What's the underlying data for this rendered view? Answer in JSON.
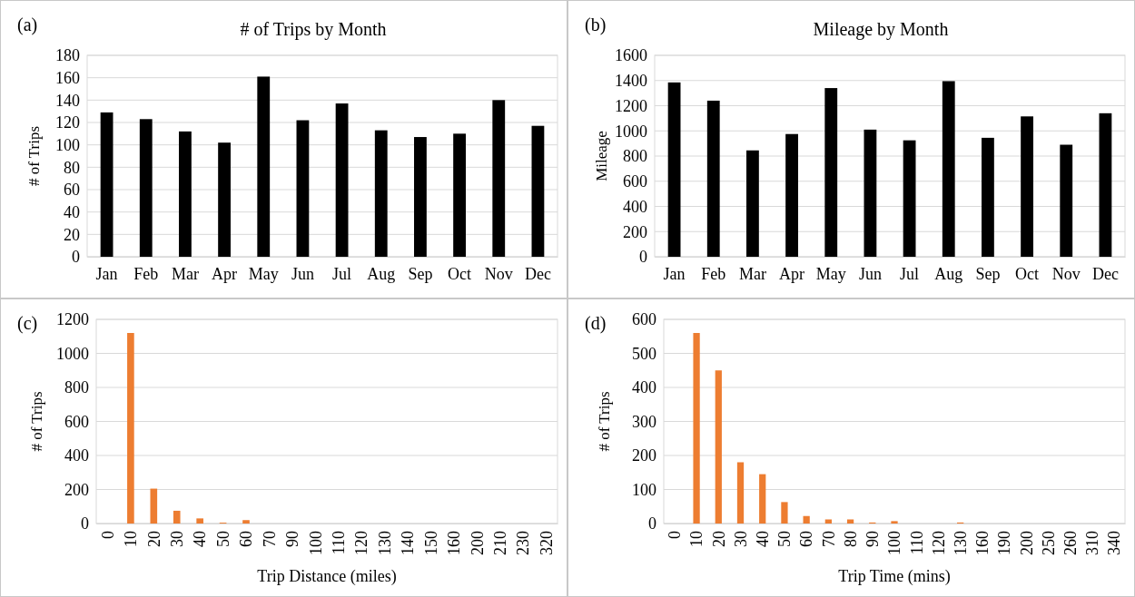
{
  "chart_data": [
    {
      "type": "bar",
      "title": "# of Trips by Month",
      "ylabel": "# of Trips",
      "annotations": [
        "(a)"
      ],
      "categories": [
        "Jan",
        "Feb",
        "Mar",
        "Apr",
        "May",
        "Jun",
        "Jul",
        "Aug",
        "Sep",
        "Oct",
        "Nov",
        "Dec"
      ],
      "values": [
        129,
        123,
        112,
        102,
        161,
        122,
        137,
        113,
        107,
        110,
        140,
        117
      ],
      "color": "#000000",
      "ylim": [
        0,
        180
      ],
      "yticks": [
        0,
        20,
        40,
        60,
        80,
        100,
        120,
        140,
        160,
        180
      ],
      "grid": "y"
    },
    {
      "type": "bar",
      "title": "Mileage  by Month",
      "ylabel": "Mileage",
      "annotations": [
        "(b)"
      ],
      "categories": [
        "Jan",
        "Feb",
        "Mar",
        "Apr",
        "May",
        "Jun",
        "Jul",
        "Aug",
        "Sep",
        "Oct",
        "Nov",
        "Dec"
      ],
      "values": [
        1385,
        1240,
        845,
        975,
        1340,
        1010,
        925,
        1395,
        945,
        1115,
        890,
        1140
      ],
      "color": "#000000",
      "ylim": [
        0,
        1600
      ],
      "yticks": [
        0,
        200,
        400,
        600,
        800,
        1000,
        1200,
        1400,
        1600
      ],
      "grid": "y"
    },
    {
      "type": "bar",
      "xlabel": "Trip Distance (miles)",
      "ylabel": "# of Trips",
      "annotations": [
        "(c)"
      ],
      "categories": [
        "0",
        "10",
        "20",
        "30",
        "40",
        "50",
        "60",
        "70",
        "90",
        "100",
        "110",
        "120",
        "130",
        "140",
        "150",
        "160",
        "200",
        "210",
        "230",
        "320"
      ],
      "values": [
        0,
        1120,
        205,
        75,
        30,
        5,
        20,
        0,
        0,
        0,
        0,
        0,
        0,
        0,
        0,
        0,
        0,
        0,
        0,
        0
      ],
      "color": "#ed7d31",
      "ylim": [
        0,
        1200
      ],
      "yticks": [
        0,
        200,
        400,
        600,
        800,
        1000,
        1200
      ],
      "grid": "y"
    },
    {
      "type": "bar",
      "xlabel": "Trip Time (mins)",
      "ylabel": "# of Trips",
      "annotations": [
        "(d)"
      ],
      "categories": [
        "0",
        "10",
        "20",
        "30",
        "40",
        "50",
        "60",
        "70",
        "80",
        "90",
        "100",
        "110",
        "120",
        "130",
        "160",
        "190",
        "200",
        "250",
        "260",
        "310",
        "340"
      ],
      "values": [
        0,
        560,
        450,
        180,
        145,
        63,
        22,
        12,
        12,
        3,
        7,
        0,
        0,
        3,
        0,
        0,
        0,
        0,
        0,
        0,
        0
      ],
      "color": "#ed7d31",
      "ylim": [
        0,
        600
      ],
      "yticks": [
        0,
        100,
        200,
        300,
        400,
        500,
        600
      ],
      "grid": "y"
    }
  ]
}
